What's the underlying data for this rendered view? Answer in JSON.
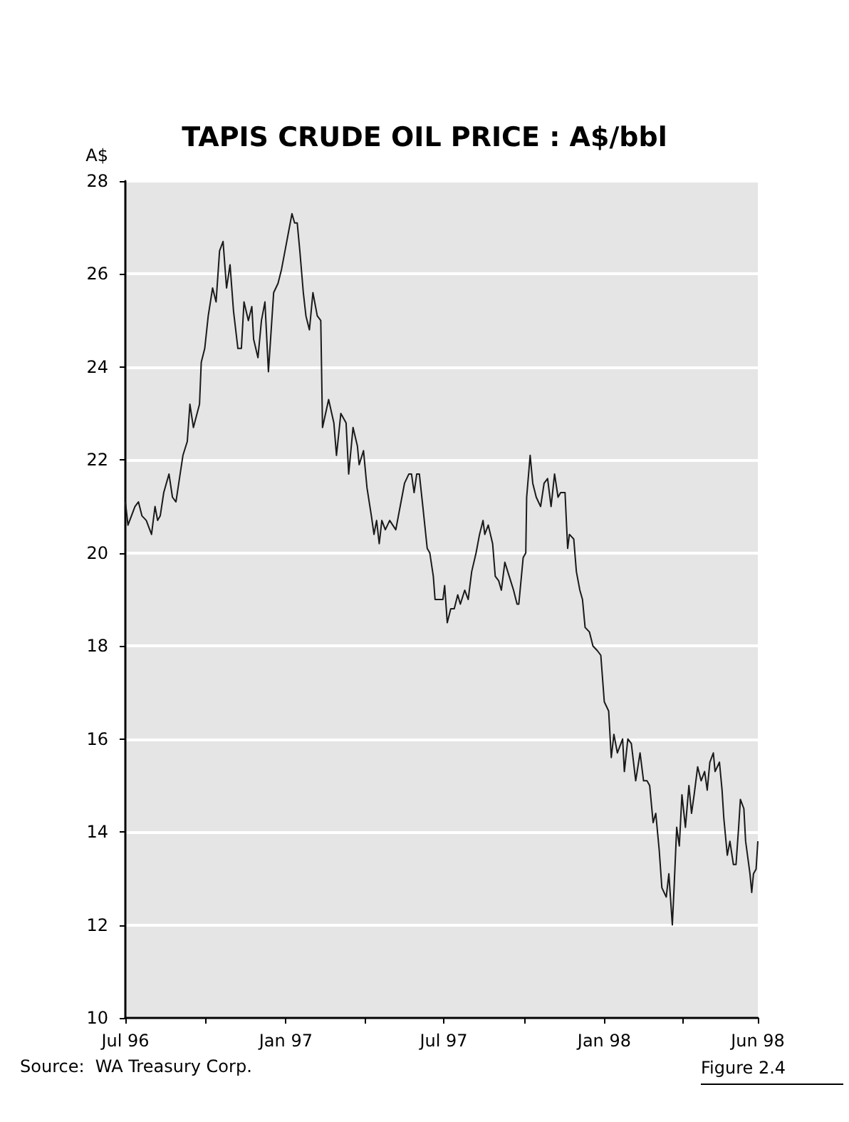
{
  "chart_data": {
    "type": "line",
    "title": "TAPIS CRUDE OIL PRICE : A$/bbl",
    "ylabel": "A$",
    "annotations": [
      "Source:  WA Treasury Corp.",
      "Figure 2.4"
    ],
    "x": [
      "1996-07-01",
      "1996-07-04",
      "1996-07-12",
      "1996-07-16",
      "1996-07-20",
      "1996-07-25",
      "1996-07-31",
      "1996-08-04",
      "1996-08-07",
      "1996-08-10",
      "1996-08-14",
      "1996-08-20",
      "1996-08-24",
      "1996-08-28",
      "1996-09-05",
      "1996-09-10",
      "1996-09-13",
      "1996-09-17",
      "1996-09-24",
      "1996-09-26",
      "1996-09-30",
      "1996-10-04",
      "1996-10-09",
      "1996-10-13",
      "1996-10-17",
      "1996-10-21",
      "1996-10-25",
      "1996-10-29",
      "1996-11-02",
      "1996-11-07",
      "1996-11-11",
      "1996-11-14",
      "1996-11-19",
      "1996-11-23",
      "1996-11-25",
      "1996-11-30",
      "1996-12-04",
      "1996-12-08",
      "1996-12-12",
      "1996-12-18",
      "1996-12-23",
      "1996-12-27",
      "1997-01-01",
      "1997-01-06",
      "1997-01-08",
      "1997-01-11",
      "1997-01-14",
      "1997-01-17",
      "1997-01-21",
      "1997-01-24",
      "1997-01-28",
      "1997-02-01",
      "1997-02-06",
      "1997-02-10",
      "1997-02-12",
      "1997-02-19",
      "1997-02-25",
      "1997-02-28",
      "1997-03-05",
      "1997-03-11",
      "1997-03-14",
      "1997-03-19",
      "1997-03-24",
      "1997-03-26",
      "1997-03-31",
      "1997-04-04",
      "1997-04-09",
      "1997-04-12",
      "1997-04-15",
      "1997-04-18",
      "1997-04-21",
      "1997-04-25",
      "1997-04-30",
      "1997-05-07",
      "1997-05-12",
      "1997-05-17",
      "1997-05-22",
      "1997-05-25",
      "1997-05-28",
      "1997-05-31",
      "1997-06-03",
      "1997-06-07",
      "1997-06-12",
      "1997-06-15",
      "1997-06-19",
      "1997-06-21",
      "1997-06-25",
      "1997-06-30",
      "1997-07-02",
      "1997-07-05",
      "1997-07-09",
      "1997-07-13",
      "1997-07-17",
      "1997-07-20",
      "1997-07-25",
      "1997-07-29",
      "1997-08-02",
      "1997-08-07",
      "1997-08-11",
      "1997-08-15",
      "1997-08-17",
      "1997-08-21",
      "1997-08-26",
      "1997-08-29",
      "1997-09-02",
      "1997-09-05",
      "1997-09-09",
      "1997-09-14",
      "1997-09-19",
      "1997-09-23",
      "1997-09-25",
      "1997-09-30",
      "1997-10-03",
      "1997-10-04",
      "1997-10-08",
      "1997-10-11",
      "1997-10-15",
      "1997-10-20",
      "1997-10-24",
      "1997-10-28",
      "1997-11-01",
      "1997-11-05",
      "1997-11-09",
      "1997-11-12",
      "1997-11-17",
      "1997-11-20",
      "1997-11-22",
      "1997-11-27",
      "1997-11-30",
      "1997-12-04",
      "1997-12-07",
      "1997-12-10",
      "1997-12-15",
      "1997-12-19",
      "1997-12-24",
      "1997-12-28",
      "1998-01-01",
      "1998-01-06",
      "1998-01-09",
      "1998-01-12",
      "1998-01-16",
      "1998-01-22",
      "1998-01-24",
      "1998-01-28",
      "1998-02-01",
      "1998-02-06",
      "1998-02-11",
      "1998-02-15",
      "1998-02-19",
      "1998-02-22",
      "1998-02-26",
      "1998-03-01",
      "1998-03-05",
      "1998-03-08",
      "1998-03-13",
      "1998-03-16",
      "1998-03-20",
      "1998-03-22",
      "1998-03-25",
      "1998-03-28",
      "1998-03-31",
      "1998-04-04",
      "1998-04-08",
      "1998-04-11",
      "1998-04-14",
      "1998-04-18",
      "1998-04-22",
      "1998-04-26",
      "1998-04-29",
      "1998-05-02",
      "1998-05-06",
      "1998-05-08",
      "1998-05-13",
      "1998-05-16",
      "1998-05-18",
      "1998-05-22",
      "1998-05-25",
      "1998-05-29",
      "1998-06-01",
      "1998-06-04",
      "1998-06-06",
      "1998-06-10",
      "1998-06-12",
      "1998-06-17",
      "1998-06-19",
      "1998-06-21",
      "1998-06-24",
      "1998-06-26"
    ],
    "series": [
      {
        "color": "#1a1a1a",
        "values": [
          21.1,
          20.6,
          21.0,
          21.1,
          20.8,
          20.7,
          20.4,
          21.0,
          20.7,
          20.8,
          21.3,
          21.7,
          21.2,
          21.1,
          22.1,
          22.4,
          23.2,
          22.7,
          23.2,
          24.1,
          24.4,
          25.1,
          25.7,
          25.4,
          26.5,
          26.7,
          25.7,
          26.2,
          25.2,
          24.4,
          24.4,
          25.4,
          25.0,
          25.3,
          24.6,
          24.2,
          25.0,
          25.4,
          23.9,
          25.6,
          25.8,
          26.1,
          26.6,
          27.1,
          27.3,
          27.1,
          27.1,
          26.5,
          25.6,
          25.1,
          24.8,
          25.6,
          25.1,
          25.0,
          22.7,
          23.3,
          22.8,
          22.1,
          23.0,
          22.8,
          21.7,
          22.7,
          22.3,
          21.9,
          22.2,
          21.4,
          20.8,
          20.4,
          20.7,
          20.2,
          20.7,
          20.5,
          20.7,
          20.5,
          21.0,
          21.5,
          21.7,
          21.7,
          21.3,
          21.7,
          21.7,
          21.0,
          20.1,
          20.0,
          19.5,
          19.0,
          19.0,
          19.0,
          19.3,
          18.5,
          18.8,
          18.8,
          19.1,
          18.9,
          19.2,
          19.0,
          19.6,
          20.0,
          20.4,
          20.7,
          20.4,
          20.6,
          20.2,
          19.5,
          19.4,
          19.2,
          19.8,
          19.5,
          19.2,
          18.9,
          18.9,
          19.9,
          20.0,
          21.2,
          22.1,
          21.5,
          21.2,
          21.0,
          21.5,
          21.6,
          21.0,
          21.7,
          21.2,
          21.3,
          21.3,
          20.1,
          20.4,
          20.3,
          19.6,
          19.2,
          19.0,
          18.4,
          18.3,
          18.0,
          17.9,
          17.8,
          16.8,
          16.6,
          15.6,
          16.1,
          15.7,
          16.0,
          15.3,
          16.0,
          15.9,
          15.1,
          15.7,
          15.1,
          15.1,
          15.0,
          14.2,
          14.4,
          13.6,
          12.8,
          12.6,
          13.1,
          12.0,
          12.8,
          14.1,
          13.7,
          14.8,
          14.1,
          15.0,
          14.4,
          14.8,
          15.4,
          15.1,
          15.3,
          14.9,
          15.5,
          15.7,
          15.3,
          15.5,
          14.9,
          14.3,
          13.5,
          13.8,
          13.3,
          13.3,
          14.1,
          14.7,
          14.5,
          13.8,
          13.1,
          12.7,
          13.1,
          13.2,
          13.8
        ]
      }
    ],
    "xlim": [
      "1996-07-01",
      "1998-06-26"
    ],
    "xticks": [
      {
        "value": "1996-07-01",
        "label": "Jul 96"
      },
      {
        "value": "1996-10-01",
        "label": null
      },
      {
        "value": "1997-01-01",
        "label": "Jan 97"
      },
      {
        "value": "1997-04-01",
        "label": null
      },
      {
        "value": "1997-07-01",
        "label": "Jul 97"
      },
      {
        "value": "1997-10-01",
        "label": null
      },
      {
        "value": "1998-01-01",
        "label": "Jan 98"
      },
      {
        "value": "1998-04-01",
        "label": null
      },
      {
        "value": "1998-06-26",
        "label": "Jun 98"
      }
    ],
    "ylim": [
      10,
      28
    ],
    "yticks": [
      10,
      12,
      14,
      16,
      18,
      20,
      22,
      24,
      26,
      28
    ],
    "grid": "y",
    "marker": "none",
    "line_style": "solid"
  }
}
